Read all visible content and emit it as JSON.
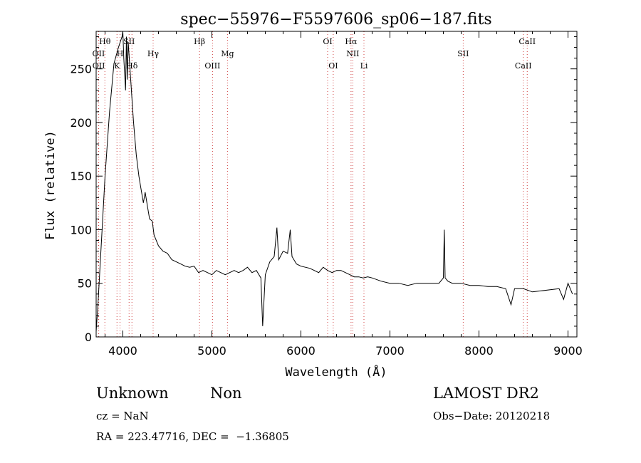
{
  "chart_data": {
    "type": "line",
    "title": "spec−55976−F5597606_sp06−187.fits",
    "xlabel": "Wavelength (Å)",
    "ylabel": "Flux (relative)",
    "xlim": [
      3700,
      9100
    ],
    "ylim": [
      0,
      285
    ],
    "xticks": [
      4000,
      5000,
      6000,
      7000,
      8000,
      9000
    ],
    "yticks": [
      0,
      50,
      100,
      150,
      200,
      250
    ],
    "grid": false,
    "series": [
      {
        "color": "#000000",
        "x": [
          3700,
          3720,
          3760,
          3800,
          3850,
          3900,
          3950,
          3990,
          4000,
          4010,
          4030,
          4040,
          4050,
          4060,
          4080,
          4100,
          4120,
          4150,
          4180,
          4200,
          4230,
          4250,
          4280,
          4300,
          4330,
          4350,
          4400,
          4450,
          4500,
          4550,
          4600,
          4650,
          4700,
          4750,
          4800,
          4850,
          4900,
          4950,
          5000,
          5050,
          5100,
          5150,
          5200,
          5250,
          5300,
          5350,
          5400,
          5450,
          5500,
          5550,
          5570,
          5600,
          5650,
          5700,
          5730,
          5750,
          5800,
          5850,
          5880,
          5900,
          5950,
          6000,
          6050,
          6100,
          6150,
          6200,
          6250,
          6300,
          6350,
          6400,
          6450,
          6500,
          6550,
          6600,
          6650,
          6700,
          6750,
          6800,
          6900,
          7000,
          7100,
          7200,
          7300,
          7400,
          7500,
          7550,
          7600,
          7610,
          7620,
          7650,
          7700,
          7800,
          7900,
          8000,
          8100,
          8200,
          8300,
          8360,
          8400,
          8500,
          8600,
          8700,
          8800,
          8900,
          8950,
          9000,
          9050
        ],
        "y": [
          5,
          30,
          90,
          150,
          210,
          255,
          270,
          280,
          285,
          260,
          230,
          280,
          240,
          275,
          250,
          225,
          200,
          170,
          150,
          140,
          125,
          135,
          120,
          110,
          108,
          95,
          85,
          80,
          78,
          72,
          70,
          68,
          66,
          65,
          66,
          60,
          62,
          60,
          58,
          62,
          60,
          58,
          60,
          62,
          60,
          62,
          65,
          60,
          62,
          55,
          10,
          58,
          70,
          75,
          102,
          72,
          80,
          78,
          100,
          75,
          68,
          66,
          65,
          64,
          62,
          60,
          65,
          62,
          60,
          62,
          62,
          60,
          58,
          56,
          56,
          55,
          56,
          55,
          52,
          50,
          50,
          48,
          50,
          50,
          50,
          50,
          55,
          100,
          55,
          52,
          50,
          50,
          48,
          48,
          47,
          47,
          45,
          30,
          45,
          45,
          42,
          43,
          44,
          45,
          35,
          50,
          40
        ]
      }
    ],
    "lines": [
      {
        "label": "Hθ",
        "x": 3798,
        "row": 1
      },
      {
        "label": "OII",
        "x": 3727,
        "row": 2
      },
      {
        "label": "OII",
        "x": 3729,
        "row": 3
      },
      {
        "label": "H",
        "x": 3968,
        "row": 2
      },
      {
        "label": "K",
        "x": 3934,
        "row": 3
      },
      {
        "label": "SII",
        "x": 4070,
        "row": 1
      },
      {
        "label": "Hδ",
        "x": 4102,
        "row": 3
      },
      {
        "label": "Hγ",
        "x": 4340,
        "row": 2
      },
      {
        "label": "Hβ",
        "x": 4861,
        "row": 1
      },
      {
        "label": "OIII",
        "x": 5007,
        "row": 3
      },
      {
        "label": "Mg",
        "x": 5175,
        "row": 2
      },
      {
        "label": "OI",
        "x": 6300,
        "row": 1
      },
      {
        "label": "OI",
        "x": 6363,
        "row": 3
      },
      {
        "label": "Hα",
        "x": 6563,
        "row": 1
      },
      {
        "label": "NII",
        "x": 6583,
        "row": 2
      },
      {
        "label": "Li",
        "x": 6708,
        "row": 3
      },
      {
        "label": "SII",
        "x": 7823,
        "row": 2
      },
      {
        "label": "CaII",
        "x": 8542,
        "row": 1
      },
      {
        "label": "CaII",
        "x": 8498,
        "row": 3
      }
    ]
  },
  "info": {
    "object_type": "Unknown",
    "object_subtype": "Non",
    "survey": "LAMOST DR2",
    "redshift": "cz = NaN",
    "obs_date": "Obs−Date: 20120218",
    "coords": "RA = 223.47716, DEC =  −1.36805"
  }
}
